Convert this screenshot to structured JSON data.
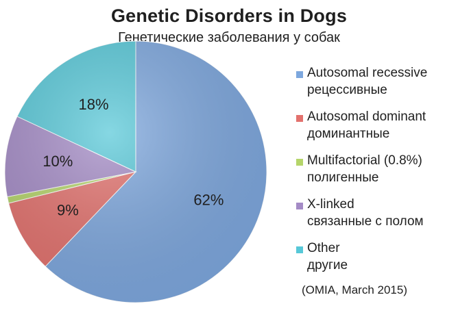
{
  "chart_data": {
    "type": "pie",
    "title": "Genetic Disorders in Dogs",
    "subtitle": "Генетические заболевания у собак",
    "source": "(OMIA, March 2015)",
    "slices": [
      {
        "label": "Autosomal recessive",
        "label_ru": "рецессивные",
        "value": 62,
        "data_label": "62%",
        "color": "#7da7de"
      },
      {
        "label": "Autosomal dominant",
        "label_ru": "доминантные",
        "value": 9,
        "data_label": "9%",
        "color": "#e3716d"
      },
      {
        "label": "Multifactorial (0.8%)",
        "label_ru": "полигенные",
        "value": 0.8,
        "data_label": "",
        "color": "#b5d56a"
      },
      {
        "label": "X-linked",
        "label_ru": "связанные с полом",
        "value": 10,
        "data_label": "10%",
        "color": "#a48bc6"
      },
      {
        "label": "Other",
        "label_ru": "другие",
        "value": 18,
        "data_label": "18%",
        "color": "#57c8d8"
      }
    ],
    "legend_position": "right"
  }
}
